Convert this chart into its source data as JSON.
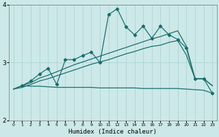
{
  "xlabel": "Humidex (Indice chaleur)",
  "xlim": [
    -0.5,
    23.5
  ],
  "ylim": [
    2,
    4
  ],
  "yticks": [
    2,
    3,
    4
  ],
  "xticks": [
    0,
    1,
    2,
    3,
    4,
    5,
    6,
    7,
    8,
    9,
    10,
    11,
    12,
    13,
    14,
    15,
    16,
    17,
    18,
    19,
    20,
    21,
    22,
    23
  ],
  "bg_color": "#cce8e8",
  "grid_color": "#aad0d0",
  "line_color": "#1a6e6e",
  "line1_x": [
    0,
    1,
    2,
    3,
    4,
    5,
    6,
    7,
    8,
    9,
    10,
    11,
    12,
    13,
    14,
    15,
    16,
    17,
    18,
    19,
    20,
    21,
    22,
    23
  ],
  "line1_y": [
    2.54,
    2.6,
    2.59,
    2.59,
    2.58,
    2.57,
    2.57,
    2.57,
    2.57,
    2.57,
    2.56,
    2.56,
    2.56,
    2.56,
    2.56,
    2.55,
    2.55,
    2.55,
    2.55,
    2.55,
    2.54,
    2.53,
    2.52,
    2.47
  ],
  "line2_x": [
    0,
    1,
    2,
    3,
    4,
    5,
    6,
    7,
    8,
    9,
    10,
    11,
    12,
    13,
    14,
    15,
    16,
    17,
    18,
    19,
    20,
    21,
    22,
    23
  ],
  "line2_y": [
    2.54,
    2.6,
    2.65,
    2.73,
    2.78,
    2.84,
    2.9,
    2.96,
    3.01,
    3.06,
    3.11,
    3.16,
    3.21,
    3.26,
    3.31,
    3.36,
    3.41,
    3.45,
    3.5,
    3.55,
    3.28,
    2.72,
    2.72,
    2.6
  ],
  "line3_x": [
    0,
    1,
    2,
    3,
    4,
    5,
    6,
    7,
    8,
    9,
    10,
    11,
    12,
    13,
    14,
    15,
    16,
    17,
    18,
    19,
    20,
    21,
    22,
    23
  ],
  "line3_y": [
    2.54,
    2.57,
    2.62,
    2.68,
    2.72,
    2.77,
    2.82,
    2.87,
    2.92,
    2.97,
    3.01,
    3.05,
    3.1,
    3.15,
    3.19,
    3.24,
    3.28,
    3.3,
    3.35,
    3.38,
    3.13,
    2.72,
    2.72,
    2.6
  ],
  "line4_x": [
    1,
    2,
    3,
    4,
    5,
    6,
    7,
    8,
    9,
    10,
    11,
    12,
    13,
    14,
    15,
    16,
    17,
    18,
    19,
    20,
    21,
    22,
    23
  ],
  "line4_y": [
    2.6,
    2.68,
    2.8,
    2.9,
    2.62,
    3.05,
    3.05,
    3.12,
    3.18,
    3.0,
    3.83,
    3.93,
    3.62,
    3.48,
    3.63,
    3.42,
    3.63,
    3.48,
    3.4,
    3.25,
    2.72,
    2.72,
    2.47
  ]
}
